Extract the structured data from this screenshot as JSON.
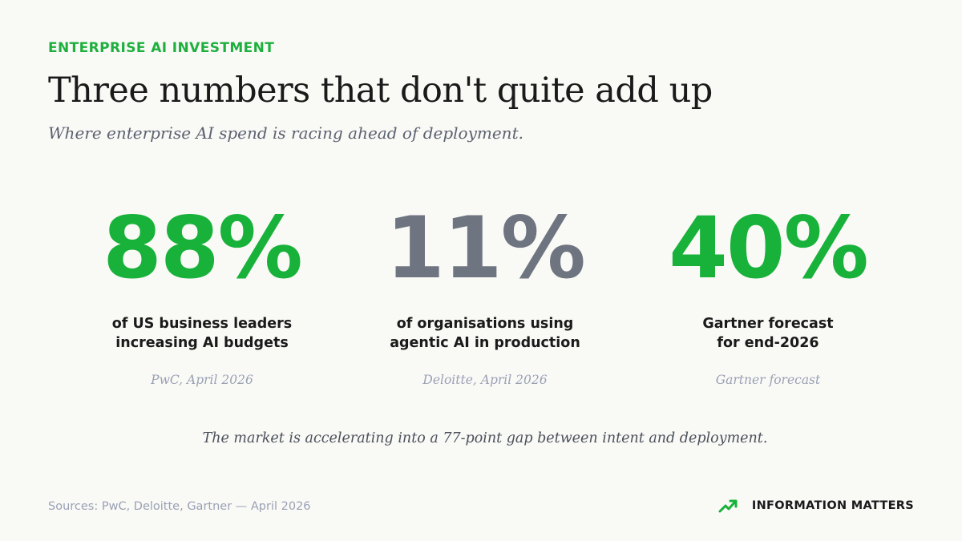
{
  "header": {
    "eyebrow": "ENTERPRISE AI INVESTMENT",
    "title": "Three numbers that don't quite add up",
    "subtitle": "Where enterprise AI spend is racing ahead of deployment."
  },
  "stats": [
    {
      "value": "88%",
      "label_lines": [
        "of US business leaders",
        "increasing AI budgets"
      ],
      "source": "PwC, April 2026",
      "color": "#18b23a"
    },
    {
      "value": "11%",
      "label_lines": [
        "of organisations using",
        "agentic AI in production"
      ],
      "source": "Deloitte, April 2026",
      "color": "#6e7480"
    },
    {
      "value": "40%",
      "label_lines": [
        "Gartner forecast",
        "for end-2026"
      ],
      "source": "Gartner forecast",
      "color": "#18b23a"
    }
  ],
  "conclusion": "The market is accelerating into a 77-point gap between intent and deployment.",
  "footer": {
    "sources": "Sources: PwC, Deloitte, Gartner — April 2026",
    "brand_name": "INFORMATION MATTERS",
    "brand_icon": "trend-up-icon"
  },
  "colors": {
    "accent": "#18b23a",
    "muted_stat": "#6e7480",
    "background": "#f9f9f6"
  }
}
